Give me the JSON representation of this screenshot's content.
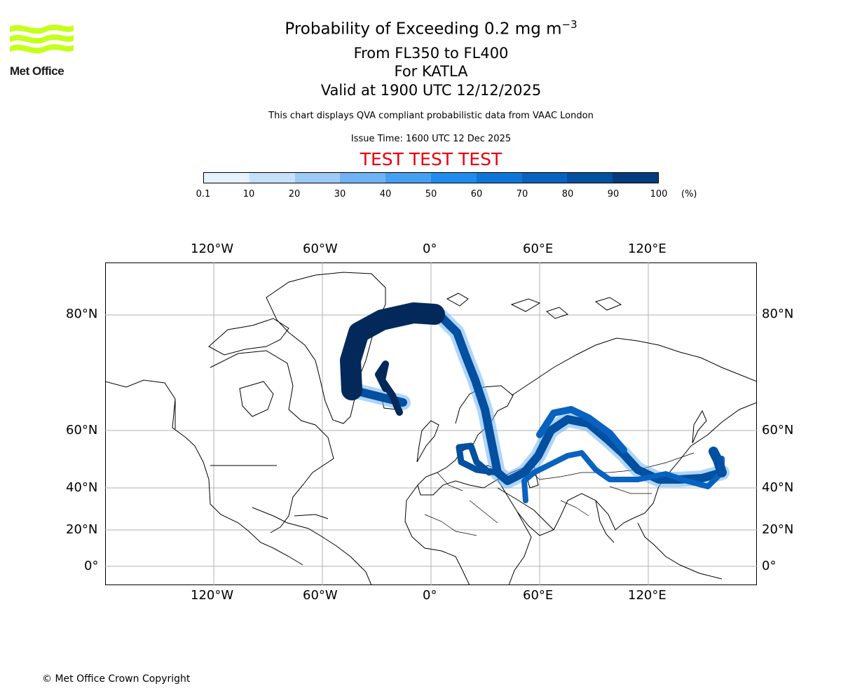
{
  "logo": {
    "text": "Met Office",
    "color": "#c6ff1a"
  },
  "title": {
    "main": "Probability of Exceeding 0.2 mg m",
    "main_sup": "−3",
    "line2": "From FL350 to FL400",
    "line3": "For KATLA",
    "line4": "Valid at 1900 UTC 12/12/2025"
  },
  "description": "This chart displays QVA compliant probabilistic data from VAAC London",
  "issue_time": "Issue Time: 1600 UTC 12 Dec 2025",
  "test_banner": "TEST TEST TEST",
  "test_color": "#e8000b",
  "colorbar": {
    "ticks": [
      "0.1",
      "10",
      "20",
      "30",
      "40",
      "50",
      "60",
      "70",
      "80",
      "90",
      "100"
    ],
    "unit": "(%)",
    "colors": [
      "#e6f2ff",
      "#c4e0fb",
      "#9ccbf8",
      "#6fb3f5",
      "#45a0f2",
      "#1f8cef",
      "#0f76d9",
      "#0862bf",
      "#034fa0",
      "#023c7e",
      "#02295a"
    ]
  },
  "map": {
    "top_lon_labels": [
      "120°W",
      "60°W",
      "0°",
      "60°E",
      "120°E"
    ],
    "bottom_lon_labels": [
      "120°W",
      "60°W",
      "0°",
      "60°E",
      "120°E"
    ],
    "left_lat_labels": [
      "80°N",
      "60°N",
      "40°N",
      "20°N",
      "0°"
    ],
    "right_lat_labels": [
      "80°N",
      "60°N",
      "40°N",
      "20°N",
      "0°"
    ]
  },
  "copyright": "© Met Office Crown Copyright"
}
